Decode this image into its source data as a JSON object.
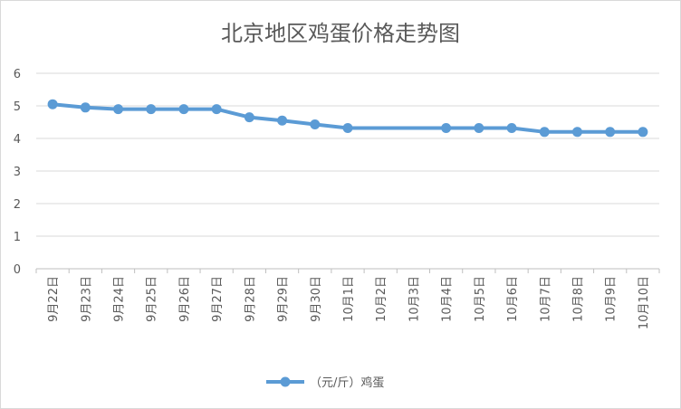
{
  "chart_data": {
    "type": "line",
    "title": "北京地区鸡蛋价格走势图",
    "xlabel": "",
    "ylabel": "",
    "categories": [
      "9月22日",
      "9月23日",
      "9月24日",
      "9月25日",
      "9月26日",
      "9月27日",
      "9月28日",
      "9月29日",
      "9月30日",
      "10月1日",
      "10月2日",
      "10月3日",
      "10月4日",
      "10月5日",
      "10月6日",
      "10月7日",
      "10月8日",
      "10月9日",
      "10月10日"
    ],
    "series": [
      {
        "name": "（元/斤）鸡蛋",
        "values": [
          5.05,
          4.95,
          4.9,
          4.9,
          4.9,
          4.9,
          4.65,
          4.55,
          4.43,
          4.32,
          null,
          null,
          4.32,
          4.32,
          4.32,
          4.2,
          4.2,
          4.2,
          4.2
        ],
        "color": "#5b9bd5"
      }
    ],
    "ylim": [
      0,
      6
    ],
    "yticks": [
      "0",
      "1",
      "2",
      "3",
      "4",
      "5",
      "6"
    ],
    "grid": true,
    "legend": "bottom",
    "connect_gaps": true
  }
}
